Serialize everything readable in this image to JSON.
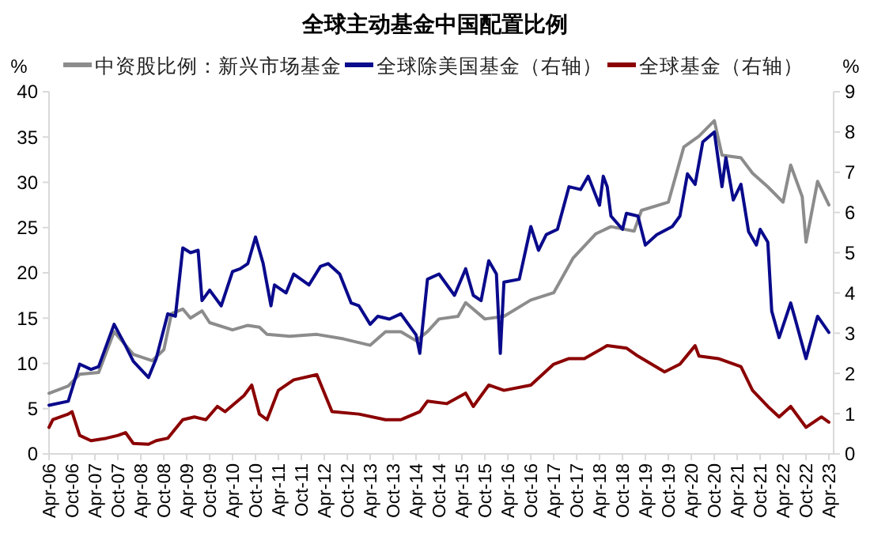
{
  "chart_data": {
    "type": "line",
    "title": "全球主动基金中国配置比例",
    "ylabel": "%",
    "y2label": "%",
    "legend": "top",
    "grid": false,
    "xlim": [
      "2006-04",
      "2023-04"
    ],
    "xticks": [
      {
        "value": "2006-04",
        "label": "Apr-06"
      },
      {
        "value": "2006-10",
        "label": "Oct-06"
      },
      {
        "value": "2007-04",
        "label": "Apr-07"
      },
      {
        "value": "2007-10",
        "label": "Oct-07"
      },
      {
        "value": "2008-04",
        "label": "Apr-08"
      },
      {
        "value": "2008-10",
        "label": "Oct-08"
      },
      {
        "value": "2009-04",
        "label": "Apr-09"
      },
      {
        "value": "2009-10",
        "label": "Oct-09"
      },
      {
        "value": "2010-04",
        "label": "Apr-10"
      },
      {
        "value": "2010-10",
        "label": "Oct-10"
      },
      {
        "value": "2011-04",
        "label": "Apr-11"
      },
      {
        "value": "2011-10",
        "label": "Oct-11"
      },
      {
        "value": "2012-04",
        "label": "Apr-12"
      },
      {
        "value": "2012-10",
        "label": "Oct-12"
      },
      {
        "value": "2013-04",
        "label": "Apr-13"
      },
      {
        "value": "2013-10",
        "label": "Oct-13"
      },
      {
        "value": "2014-04",
        "label": "Apr-14"
      },
      {
        "value": "2014-10",
        "label": "Oct-14"
      },
      {
        "value": "2015-04",
        "label": "Apr-15"
      },
      {
        "value": "2015-10",
        "label": "Oct-15"
      },
      {
        "value": "2016-04",
        "label": "Apr-16"
      },
      {
        "value": "2016-10",
        "label": "Oct-16"
      },
      {
        "value": "2017-04",
        "label": "Apr-17"
      },
      {
        "value": "2017-10",
        "label": "Oct-17"
      },
      {
        "value": "2018-04",
        "label": "Apr-18"
      },
      {
        "value": "2018-10",
        "label": "Oct-18"
      },
      {
        "value": "2019-04",
        "label": "Apr-19"
      },
      {
        "value": "2019-10",
        "label": "Oct-19"
      },
      {
        "value": "2020-04",
        "label": "Apr-20"
      },
      {
        "value": "2020-10",
        "label": "Oct-20"
      },
      {
        "value": "2021-04",
        "label": "Apr-21"
      },
      {
        "value": "2021-10",
        "label": "Oct-21"
      },
      {
        "value": "2022-04",
        "label": "Apr-22"
      },
      {
        "value": "2022-10",
        "label": "Oct-22"
      },
      {
        "value": "2023-04",
        "label": "Apr-23"
      }
    ],
    "ylim": [
      0,
      40
    ],
    "yticks": [
      0,
      5,
      10,
      15,
      20,
      25,
      30,
      35,
      40
    ],
    "y2lim": [
      0,
      9
    ],
    "y2ticks": [
      0,
      1,
      2,
      3,
      4,
      5,
      6,
      7,
      8,
      9
    ],
    "series": [
      {
        "name": "中资股比例：新兴市场基金",
        "color": "#8c8c8c",
        "x": [
          "2006-04",
          "2006-09",
          "2006-12",
          "2007-05",
          "2007-09",
          "2008-02",
          "2008-07",
          "2008-10",
          "2008-12",
          "2009-03",
          "2009-05",
          "2009-08",
          "2009-10",
          "2010-04",
          "2010-08",
          "2010-11",
          "2011-01",
          "2011-07",
          "2012-02",
          "2012-09",
          "2013-04",
          "2013-08",
          "2013-12",
          "2014-04",
          "2014-07",
          "2014-10",
          "2015-03",
          "2015-05",
          "2015-10",
          "2016-03",
          "2016-10",
          "2017-04",
          "2017-09",
          "2018-03",
          "2018-07",
          "2019-01",
          "2019-03",
          "2019-10",
          "2020-02",
          "2020-06",
          "2020-10",
          "2020-12",
          "2021-05",
          "2021-08",
          "2021-12",
          "2022-04",
          "2022-06",
          "2022-09",
          "2022-10",
          "2023-01",
          "2023-04"
        ],
        "values": [
          6.7,
          7.5,
          8.8,
          9.0,
          13.5,
          11,
          10.3,
          11.5,
          15.5,
          16,
          15,
          15.8,
          14.5,
          13.7,
          14.2,
          14,
          13.2,
          13,
          13.2,
          12.7,
          12,
          13.5,
          13.5,
          12.5,
          13.5,
          14.9,
          15.2,
          16.7,
          14.9,
          15.2,
          17,
          17.8,
          21.6,
          24.3,
          25.1,
          24.6,
          26.9,
          27.8,
          33.9,
          35.1,
          36.8,
          33,
          32.7,
          31,
          29.5,
          27.8,
          31.9,
          28.4,
          23.4,
          30.1,
          27.5
        ]
      },
      {
        "name": "全球除美国基金（右轴）",
        "color": "#0a0a8c",
        "axis": "y2",
        "x": [
          "2006-04",
          "2006-09",
          "2006-12",
          "2007-03",
          "2007-05",
          "2007-09",
          "2007-12",
          "2008-02",
          "2008-06",
          "2008-08",
          "2008-11",
          "2009-01",
          "2009-03",
          "2009-05",
          "2009-07",
          "2009-08",
          "2009-10",
          "2010-01",
          "2010-04",
          "2010-06",
          "2010-08",
          "2010-10",
          "2010-12",
          "2011-02",
          "2011-03",
          "2011-06",
          "2011-08",
          "2011-12",
          "2012-03",
          "2012-05",
          "2012-08",
          "2012-11",
          "2013-01",
          "2013-04",
          "2013-06",
          "2013-09",
          "2013-12",
          "2014-04",
          "2014-05",
          "2014-07",
          "2014-10",
          "2015-02",
          "2015-05",
          "2015-07",
          "2015-09",
          "2015-11",
          "2016-01",
          "2016-02",
          "2016-03",
          "2016-07",
          "2016-10",
          "2016-12",
          "2017-02",
          "2017-05",
          "2017-08",
          "2017-11",
          "2018-01",
          "2018-04",
          "2018-05",
          "2018-06",
          "2018-07",
          "2018-10",
          "2018-11",
          "2019-02",
          "2019-04",
          "2019-07",
          "2019-11",
          "2020-01",
          "2020-03",
          "2020-05",
          "2020-07",
          "2020-10",
          "2020-12",
          "2021-01",
          "2021-03",
          "2021-05",
          "2021-07",
          "2021-09",
          "2021-10",
          "2021-12",
          "2022-01",
          "2022-03",
          "2022-06",
          "2022-07",
          "2022-10",
          "2023-01",
          "2023-04"
        ],
        "values": [
          1.21,
          1.31,
          2.23,
          2.1,
          2.17,
          3.22,
          2.69,
          2.3,
          1.9,
          2.37,
          3.48,
          3.42,
          5.12,
          5.0,
          5.06,
          3.81,
          4.07,
          3.68,
          4.53,
          4.6,
          4.73,
          5.39,
          4.73,
          3.68,
          4.2,
          4.0,
          4.47,
          4.2,
          4.66,
          4.73,
          4.47,
          3.75,
          3.68,
          3.22,
          3.42,
          3.35,
          3.48,
          2.96,
          2.5,
          4.34,
          4.47,
          3.94,
          4.6,
          3.94,
          3.81,
          4.8,
          4.47,
          2.5,
          4.27,
          4.34,
          5.65,
          5.06,
          5.45,
          5.58,
          6.64,
          6.57,
          6.9,
          6.18,
          6.9,
          6.64,
          5.91,
          5.58,
          5.98,
          5.91,
          5.19,
          5.45,
          5.65,
          5.91,
          6.96,
          6.7,
          7.75,
          8.0,
          6.64,
          7.36,
          6.31,
          6.7,
          5.52,
          5.19,
          5.58,
          5.26,
          3.55,
          2.89,
          3.75,
          3.42,
          2.37,
          3.42,
          3.02
        ]
      },
      {
        "name": "全球基金（右轴）",
        "color": "#8b0000",
        "axis": "y2",
        "x": [
          "2006-04",
          "2006-05",
          "2006-09",
          "2006-10",
          "2006-12",
          "2007-03",
          "2007-07",
          "2007-10",
          "2007-12",
          "2008-02",
          "2008-06",
          "2008-08",
          "2008-11",
          "2009-03",
          "2009-06",
          "2009-09",
          "2009-12",
          "2010-02",
          "2010-07",
          "2010-09",
          "2010-11",
          "2011-01",
          "2011-04",
          "2011-08",
          "2012-02",
          "2012-06",
          "2013-01",
          "2013-08",
          "2013-12",
          "2014-05",
          "2014-07",
          "2014-12",
          "2015-05",
          "2015-07",
          "2015-11",
          "2016-03",
          "2016-10",
          "2017-04",
          "2017-08",
          "2017-12",
          "2018-06",
          "2018-11",
          "2019-02",
          "2019-09",
          "2020-01",
          "2020-05",
          "2020-06",
          "2020-11",
          "2021-05",
          "2021-08",
          "2021-12",
          "2022-03",
          "2022-06",
          "2022-10",
          "2023-02",
          "2023-04"
        ],
        "values": [
          0.66,
          0.85,
          0.99,
          1.05,
          0.46,
          0.33,
          0.39,
          0.46,
          0.53,
          0.26,
          0.24,
          0.33,
          0.39,
          0.85,
          0.92,
          0.85,
          1.18,
          1.05,
          1.45,
          1.71,
          0.99,
          0.85,
          1.58,
          1.84,
          1.97,
          1.05,
          0.99,
          0.85,
          0.85,
          1.05,
          1.31,
          1.25,
          1.51,
          1.18,
          1.71,
          1.58,
          1.71,
          2.23,
          2.37,
          2.37,
          2.69,
          2.63,
          2.43,
          2.04,
          2.23,
          2.69,
          2.43,
          2.37,
          2.17,
          1.58,
          1.18,
          0.92,
          1.18,
          0.66,
          0.92,
          0.79
        ]
      }
    ]
  }
}
